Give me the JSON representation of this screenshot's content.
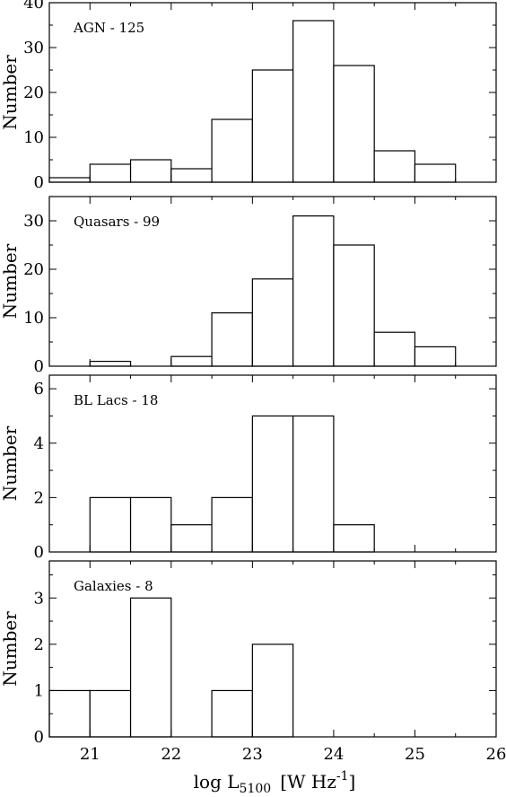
{
  "chart_data": [
    {
      "type": "bar",
      "label": "AGN - 125",
      "ylabel": "Number",
      "ylim": [
        0,
        40
      ],
      "yticks": [
        0,
        10,
        20,
        30,
        40
      ],
      "ytick_labels": [
        "0",
        "10",
        "20",
        "30",
        "40"
      ],
      "y_minor_step": 5,
      "bin_edges": [
        20.5,
        21.0,
        21.5,
        22.0,
        22.5,
        23.0,
        23.5,
        24.0,
        24.5,
        25.0,
        25.5
      ],
      "values": [
        1,
        4,
        5,
        3,
        14,
        25,
        36,
        26,
        7,
        4
      ]
    },
    {
      "type": "bar",
      "label": "Quasars - 99",
      "ylabel": "Number",
      "ylim": [
        0,
        35
      ],
      "yticks": [
        0,
        10,
        20,
        30
      ],
      "ytick_labels": [
        "0",
        "10",
        "20",
        "30"
      ],
      "y_minor_step": 5,
      "bin_edges": [
        21.0,
        21.5,
        22.0,
        22.5,
        23.0,
        23.5,
        24.0,
        24.5,
        25.0,
        25.5
      ],
      "values": [
        1,
        0,
        2,
        11,
        18,
        31,
        25,
        7,
        4
      ]
    },
    {
      "type": "bar",
      "label": "BL Lacs - 18",
      "ylabel": "Number",
      "ylim": [
        0,
        6.5
      ],
      "yticks": [
        0,
        2,
        4,
        6
      ],
      "ytick_labels": [
        "0",
        "2",
        "4",
        "6"
      ],
      "y_minor_step": 1,
      "bin_edges": [
        21.0,
        21.5,
        22.0,
        22.5,
        23.0,
        23.5,
        24.0,
        24.5
      ],
      "values": [
        2,
        2,
        1,
        2,
        5,
        5,
        1
      ]
    },
    {
      "type": "bar",
      "label": "Galaxies - 8",
      "ylabel": "Number",
      "ylim": [
        0,
        3.8
      ],
      "yticks": [
        0,
        1,
        2,
        3
      ],
      "ytick_labels": [
        "0",
        "1",
        "2",
        "3"
      ],
      "y_minor_step": 0.5,
      "bin_edges": [
        20.5,
        21.0,
        21.5,
        22.0,
        22.5,
        23.0,
        23.5
      ],
      "values": [
        1,
        1,
        3,
        0,
        1,
        2
      ]
    }
  ],
  "x_axis": {
    "xlim": [
      20.5,
      26
    ],
    "ticks": [
      21,
      22,
      23,
      24,
      25,
      26
    ],
    "tick_labels": [
      "21",
      "22",
      "23",
      "24",
      "25",
      "26"
    ],
    "minor_step": 0.5,
    "label_main": "log L",
    "label_sub": "5100",
    "label_unit": "[W Hz",
    "label_sup": "-1",
    "label_close": "]"
  }
}
